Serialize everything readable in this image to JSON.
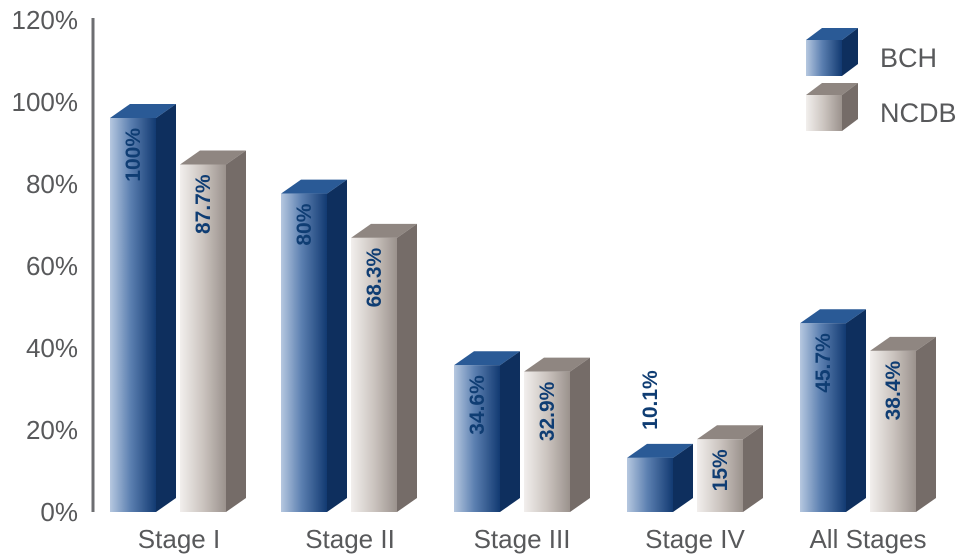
{
  "chart_data": {
    "type": "bar",
    "categories": [
      "Stage I",
      "Stage II",
      "Stage III",
      "Stage IV",
      "All Stages"
    ],
    "series": [
      {
        "name": "BCH",
        "values": [
          100,
          80,
          34.6,
          10.1,
          45.7
        ],
        "labels": [
          "100%",
          "80%",
          "34.6%",
          "10.1%",
          "45.7%"
        ],
        "color": "#1c4b85"
      },
      {
        "name": "NCDB",
        "values": [
          87.7,
          68.3,
          32.9,
          15,
          38.4
        ],
        "labels": [
          "87.7%",
          "68.3%",
          "32.9%",
          "15%",
          "38.4%"
        ],
        "color": "#a8a09c"
      }
    ],
    "y_ticks": [
      "0%",
      "20%",
      "40%",
      "60%",
      "80%",
      "100%",
      "120%"
    ],
    "ylim": [
      0,
      120
    ],
    "legend_position": "top-right",
    "three_d": true,
    "grid": false,
    "title": "",
    "xlabel": "",
    "ylabel": ""
  }
}
